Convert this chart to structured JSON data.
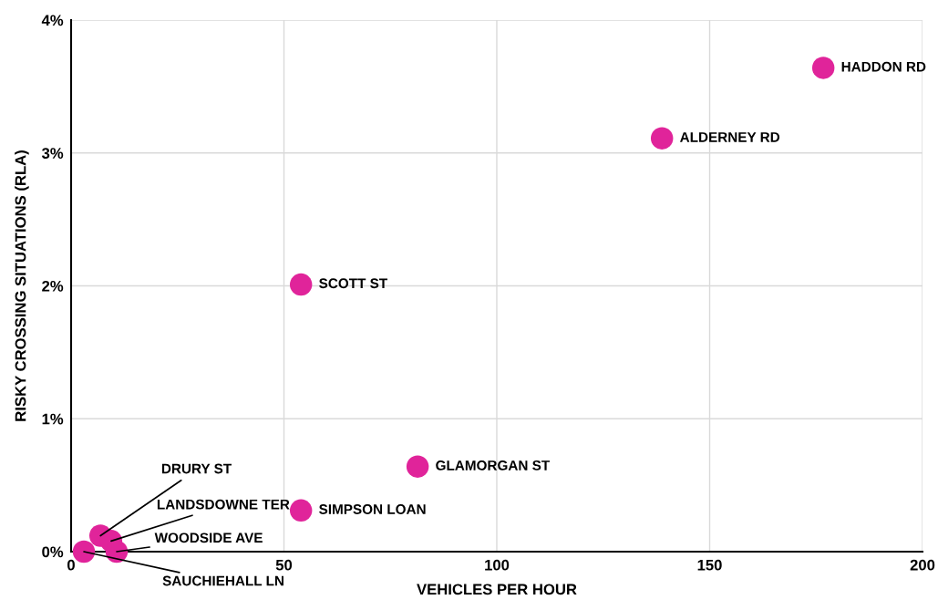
{
  "chart_data": {
    "type": "scatter",
    "xlabel": "VEHICLES PER HOUR",
    "ylabel": "RISKY CROSSING SITUATIONS (RLA)",
    "x": [
      176.7,
      138.8,
      54,
      81.4,
      54,
      6.9,
      9.4,
      10.7,
      3
    ],
    "values": [
      3.64,
      3.11,
      2.01,
      0.64,
      0.31,
      0.12,
      0.08,
      0.0,
      0.0
    ],
    "color": "#e0249a",
    "marker": "circle",
    "grid": true,
    "xlim": [
      0,
      200
    ],
    "xticks": [
      0,
      50,
      100,
      150,
      200
    ],
    "ylim": [
      0,
      4
    ],
    "yticks": [
      {
        "value": 0,
        "label": "0%"
      },
      {
        "value": 1,
        "label": "1%"
      },
      {
        "value": 2,
        "label": "2%"
      },
      {
        "value": 3,
        "label": "3%"
      },
      {
        "value": 4,
        "label": "4%"
      }
    ],
    "annotations": [
      {
        "text": "HADDON RD",
        "x": 176.7,
        "y": 3.64
      },
      {
        "text": "ALDERNEY RD",
        "x": 138.8,
        "y": 3.11
      },
      {
        "text": "SCOTT ST",
        "x": 54,
        "y": 2.01
      },
      {
        "text": "GLAMORGAN ST",
        "x": 81.4,
        "y": 0.64
      },
      {
        "text": "SIMPSON LOAN",
        "x": 54,
        "y": 0.31
      },
      {
        "text": "DRURY ST",
        "x": 6.9,
        "y": 0.12
      },
      {
        "text": "LANDSDOWNE TER",
        "x": 9.4,
        "y": 0.08
      },
      {
        "text": "WOODSIDE AVE",
        "x": 10.7,
        "y": 0.0
      },
      {
        "text": "SAUCHIEHALL LN",
        "x": 3,
        "y": 0.0
      }
    ]
  }
}
